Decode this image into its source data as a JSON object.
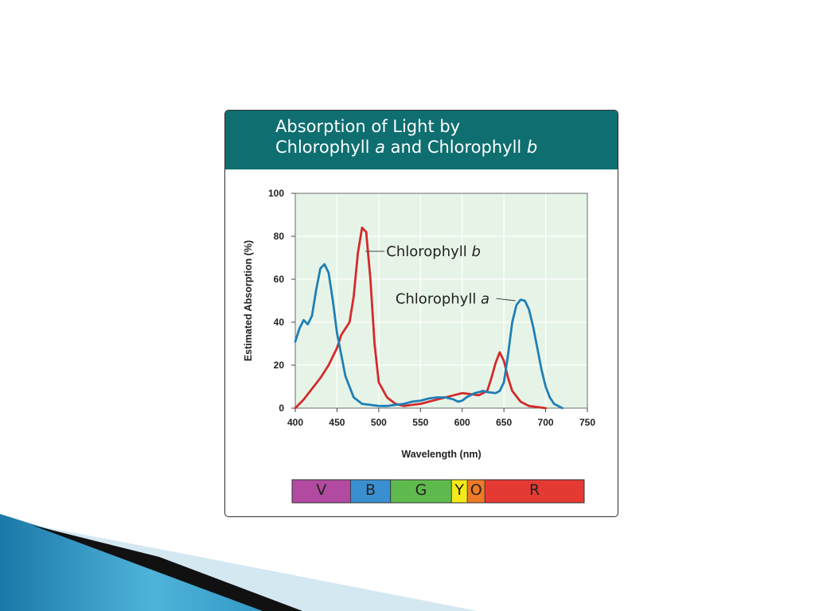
{
  "figure": {
    "title_line1": "Absorption of Light by",
    "title_line2_part1": "Chlorophyll ",
    "title_line2_italic1": "a",
    "title_line2_part2": " and Chlorophyll ",
    "title_line2_italic2": "b",
    "header_color": "#0f6e70"
  },
  "chart_data": {
    "type": "line",
    "xlabel": "Wavelength (nm)",
    "ylabel": "Estimated Absorption (%)",
    "xlim": [
      400,
      750
    ],
    "ylim": [
      0,
      100
    ],
    "xticks": [
      400,
      450,
      500,
      550,
      600,
      650,
      700,
      750
    ],
    "yticks": [
      0,
      20,
      40,
      60,
      80,
      100
    ],
    "grid": true,
    "plot_background": "#e6f4e8",
    "series": [
      {
        "name": "Chlorophyll b",
        "label_plain": "Chlorophyll ",
        "label_italic": "b",
        "color": "#d42a2a",
        "x": [
          400,
          410,
          420,
          430,
          440,
          450,
          455,
          460,
          465,
          470,
          475,
          480,
          485,
          490,
          495,
          500,
          510,
          520,
          530,
          540,
          550,
          560,
          570,
          580,
          590,
          600,
          610,
          620,
          630,
          635,
          640,
          645,
          650,
          655,
          660,
          670,
          680,
          690,
          700
        ],
        "y": [
          0,
          4,
          9,
          14,
          20,
          28,
          34,
          37,
          40,
          52,
          72,
          84,
          82,
          60,
          30,
          12,
          5,
          2,
          1,
          1.5,
          2,
          3,
          4,
          5,
          6,
          7,
          6.5,
          6,
          8,
          14,
          21,
          26,
          22,
          14,
          8,
          3,
          1,
          0.5,
          0
        ]
      },
      {
        "name": "Chlorophyll a",
        "label_plain": "Chlorophyll ",
        "label_italic": "a",
        "color": "#1f7fb5",
        "x": [
          400,
          405,
          410,
          415,
          420,
          425,
          430,
          435,
          440,
          445,
          450,
          455,
          460,
          470,
          480,
          490,
          500,
          510,
          520,
          530,
          540,
          550,
          560,
          570,
          580,
          590,
          595,
          600,
          605,
          610,
          615,
          620,
          625,
          630,
          640,
          645,
          650,
          655,
          660,
          665,
          670,
          675,
          680,
          685,
          690,
          695,
          700,
          705,
          710,
          715,
          720
        ],
        "y": [
          31,
          37,
          41,
          39,
          43,
          55,
          65,
          67,
          63,
          50,
          35,
          25,
          15,
          5,
          2,
          1.5,
          1,
          1,
          1.5,
          2,
          3,
          3.5,
          4.5,
          5,
          5,
          4,
          3,
          3.5,
          5,
          6,
          7,
          7.5,
          8,
          7.5,
          7,
          8,
          12,
          25,
          40,
          48,
          50.5,
          50,
          46,
          38,
          28,
          18,
          10,
          5,
          2,
          1,
          0
        ]
      }
    ],
    "spectrum_bands": [
      {
        "label": "V",
        "from": 400,
        "to": 470,
        "color": "#b14aa0"
      },
      {
        "label": "B",
        "from": 470,
        "to": 518,
        "color": "#3a8fd0"
      },
      {
        "label": "G",
        "from": 518,
        "to": 591,
        "color": "#5fba4e"
      },
      {
        "label": "Y",
        "from": 591,
        "to": 610,
        "color": "#f4ea1a"
      },
      {
        "label": "O",
        "from": 610,
        "to": 631,
        "color": "#ef7a24"
      },
      {
        "label": "R",
        "from": 631,
        "to": 750,
        "color": "#e53a34"
      }
    ]
  },
  "decor_colors": {
    "ribbon_light": "#cfe4ef",
    "ribbon_blue": "#2b8fbf",
    "ribbon_dark": "#111111"
  }
}
